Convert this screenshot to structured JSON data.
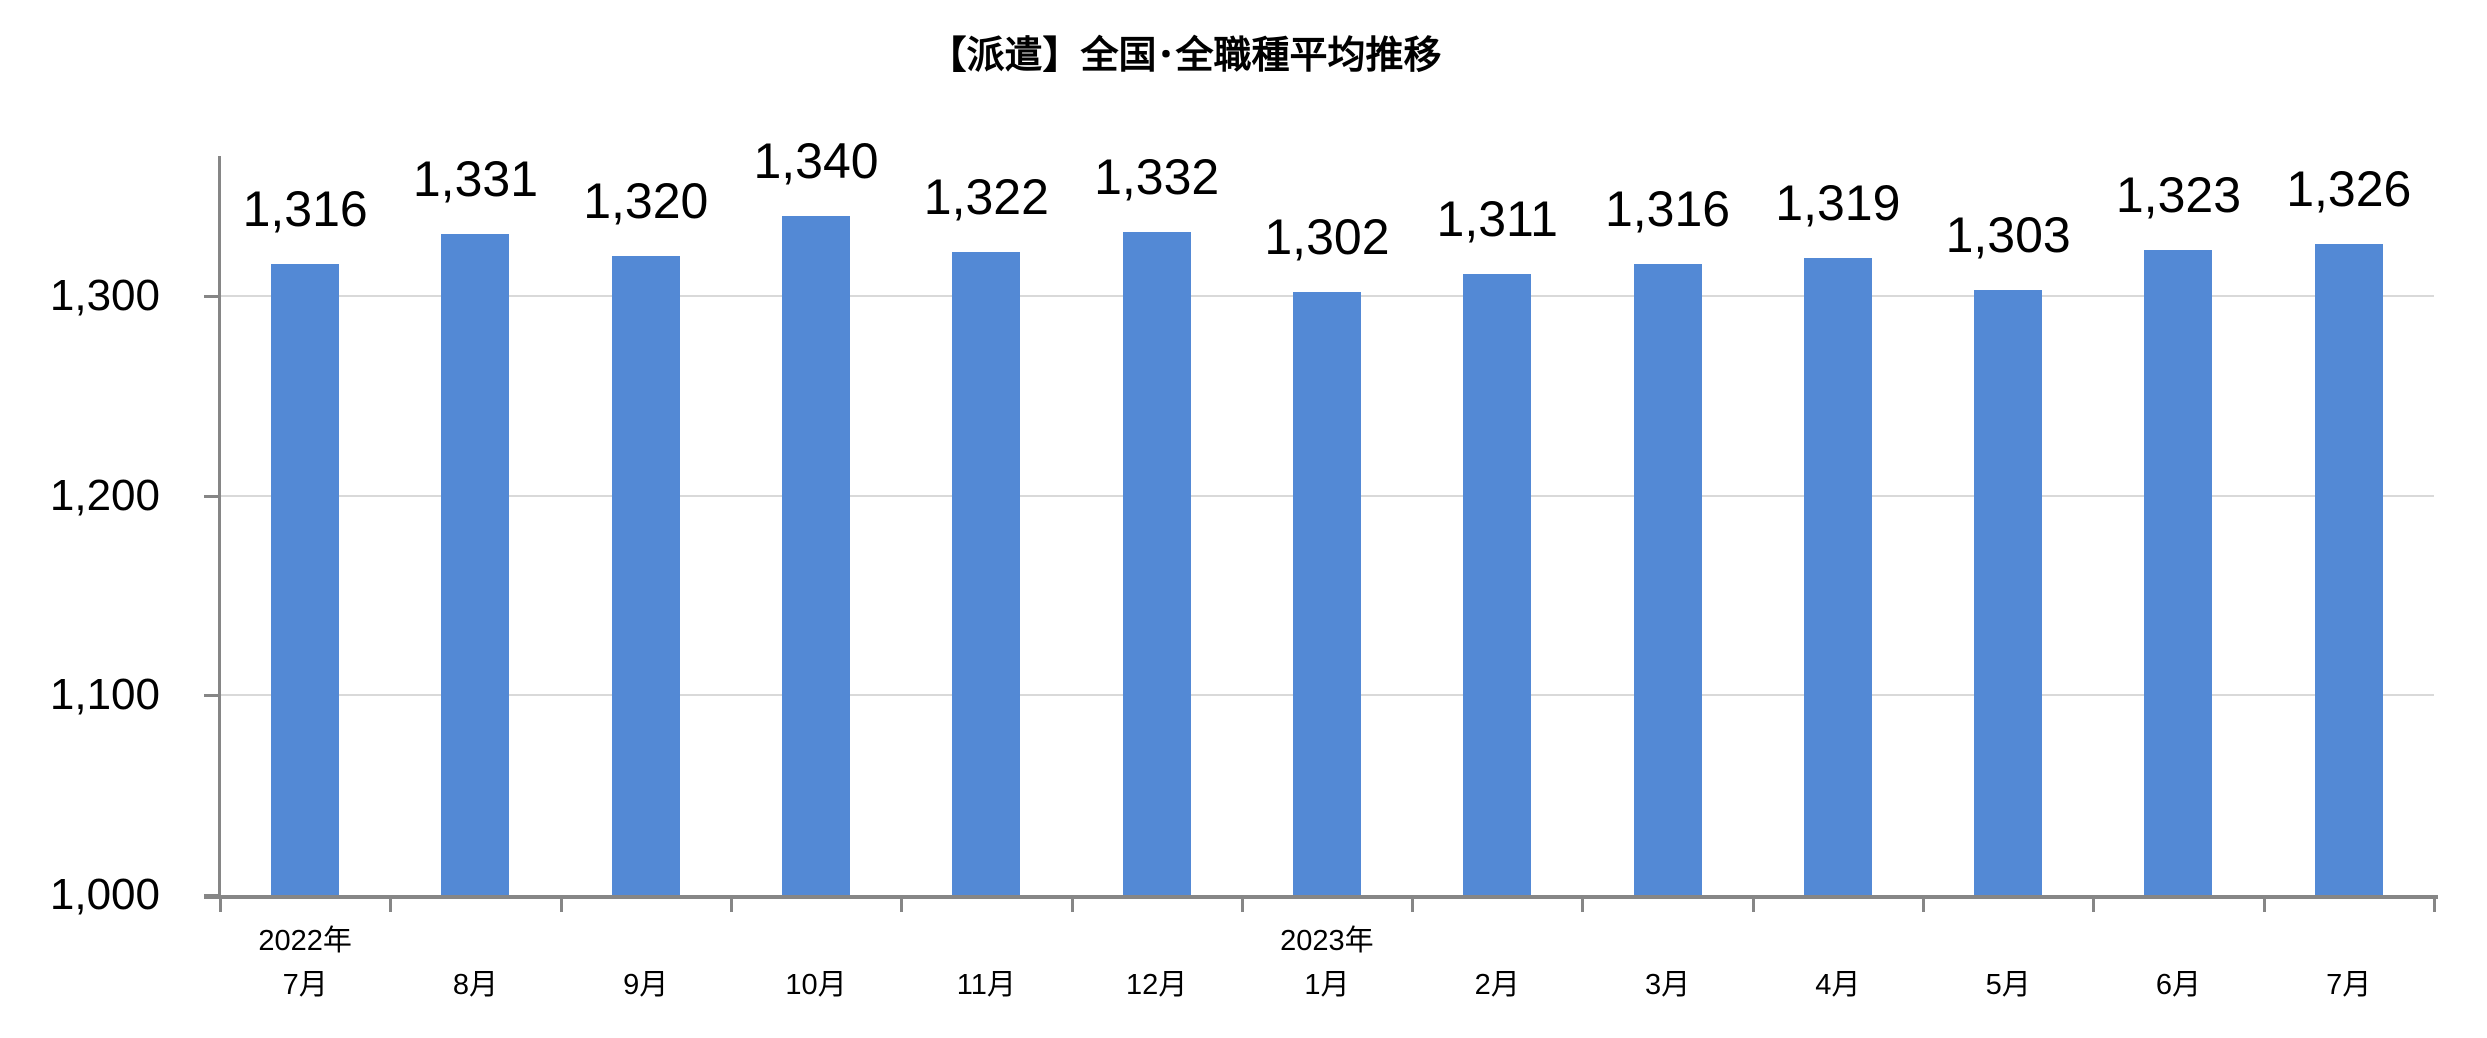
{
  "chart_data": {
    "type": "bar",
    "title": "【派遣】全国･全職種平均推移",
    "categories": [
      "7月",
      "8月",
      "9月",
      "10月",
      "11月",
      "12月",
      "1月",
      "2月",
      "3月",
      "4月",
      "5月",
      "6月",
      "7月"
    ],
    "year_markers": [
      {
        "slot": 0,
        "text": "2022年"
      },
      {
        "slot": 6,
        "text": "2023年"
      }
    ],
    "values": [
      1316,
      1331,
      1320,
      1340,
      1322,
      1332,
      1302,
      1311,
      1316,
      1319,
      1303,
      1323,
      1326
    ],
    "value_labels": [
      "1,316",
      "1,331",
      "1,320",
      "1,340",
      "1,322",
      "1,332",
      "1,302",
      "1,311",
      "1,316",
      "1,319",
      "1,303",
      "1,323",
      "1,326"
    ],
    "ylim": [
      1000,
      1370
    ],
    "yticks": [
      {
        "value": 1000,
        "label": "1,000"
      },
      {
        "value": 1100,
        "label": "1,100"
      },
      {
        "value": 1200,
        "label": "1,200"
      },
      {
        "value": 1300,
        "label": "1,300"
      }
    ],
    "grid": true,
    "legend": "none",
    "colors": {
      "bar": "#5389D5",
      "gridline": "#D9D9D9",
      "axis": "#868686",
      "text": "#000000"
    }
  }
}
